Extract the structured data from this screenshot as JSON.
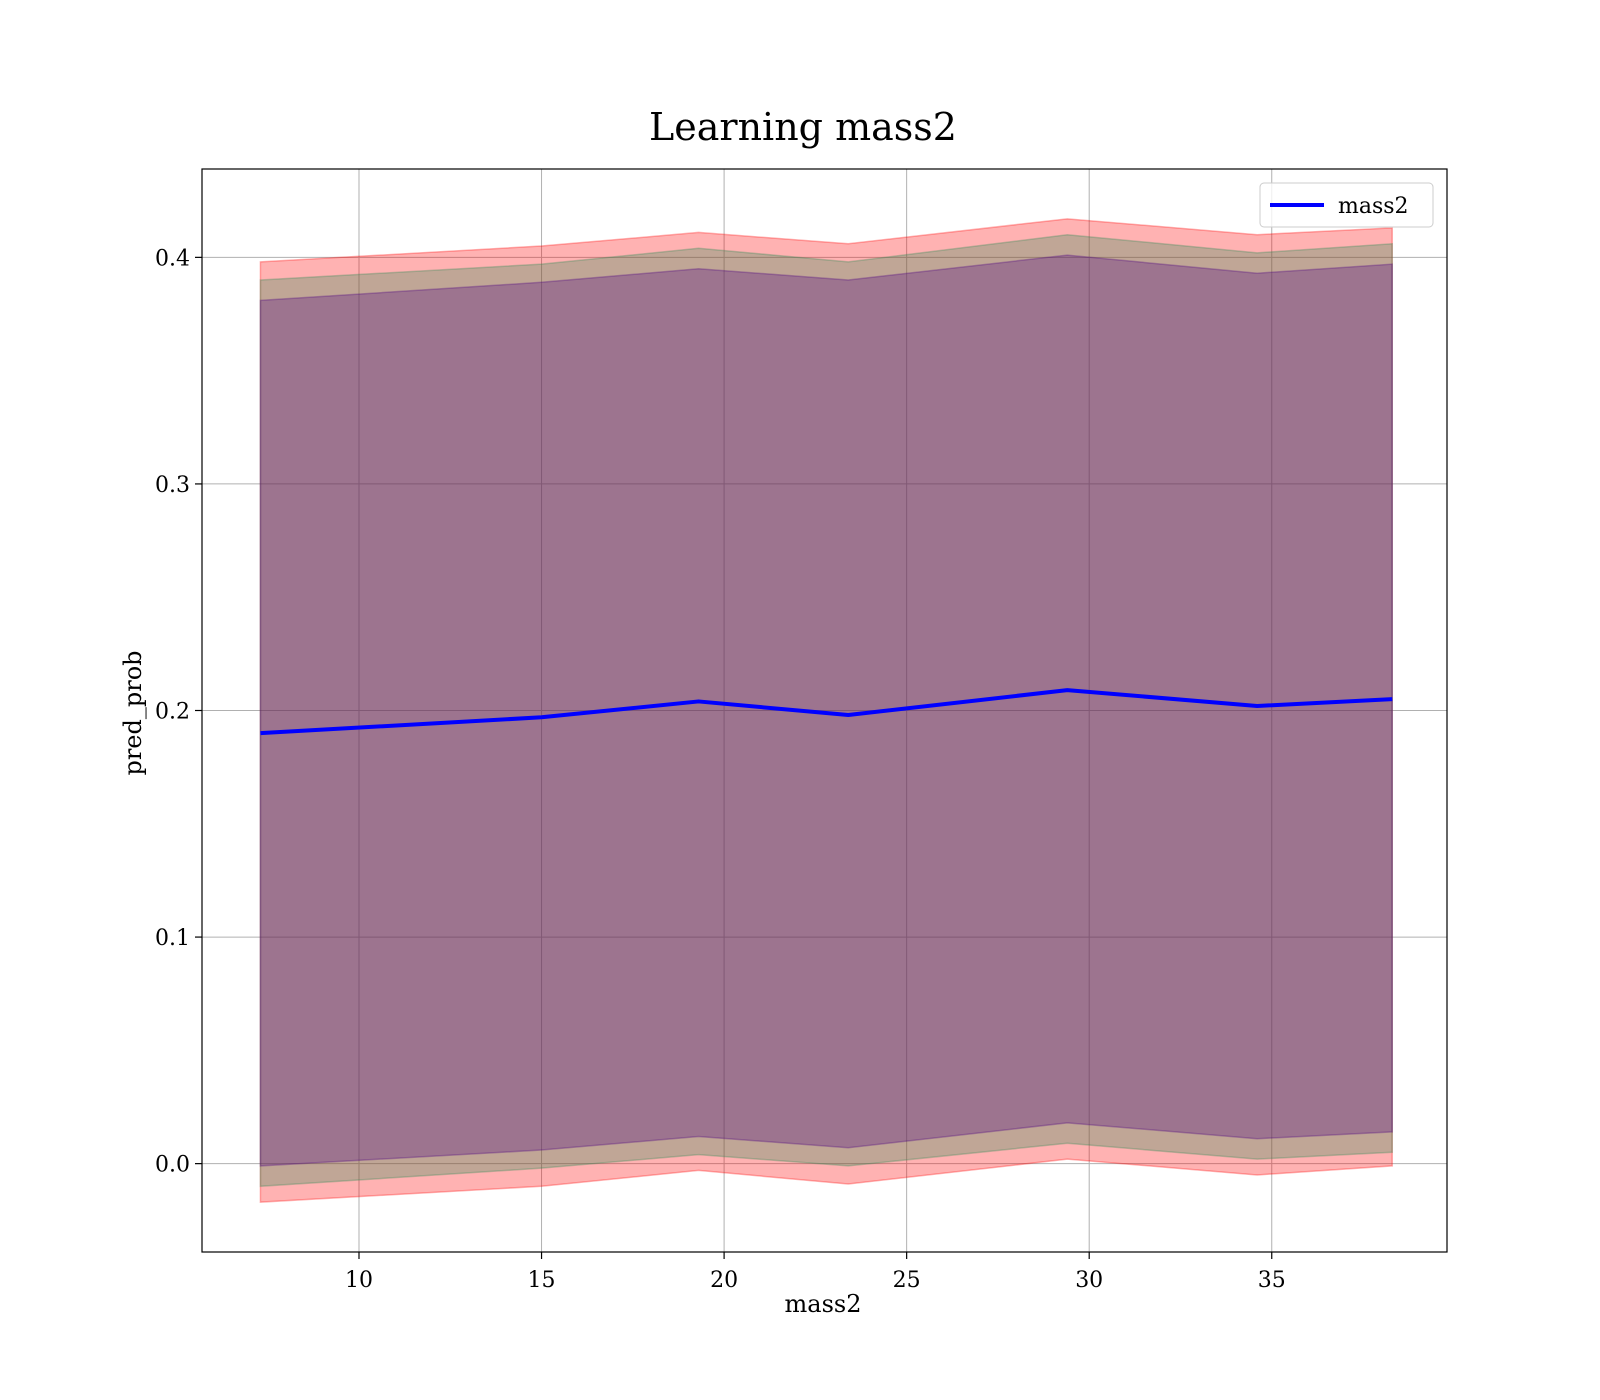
{
  "chart_data": {
    "type": "line",
    "title": "Learning mass2",
    "xlabel": "mass2",
    "ylabel": "pred_prob",
    "xlim": [
      5.7,
      39.8
    ],
    "ylim": [
      -0.039,
      0.439
    ],
    "xticks": [
      10,
      15,
      20,
      25,
      30,
      35
    ],
    "yticks": [
      0.0,
      0.1,
      0.2,
      0.3,
      0.4
    ],
    "xtick_labels": [
      "10",
      "15",
      "20",
      "25",
      "30",
      "35"
    ],
    "ytick_labels": [
      "0.0",
      "0.1",
      "0.2",
      "0.3",
      "0.4"
    ],
    "grid": true,
    "legend_position": "top-right",
    "x": [
      7.3,
      15.0,
      19.3,
      23.4,
      29.4,
      34.6,
      38.3
    ],
    "series": [
      {
        "name": "mass2",
        "color": "#0000ff",
        "values": [
          0.19,
          0.197,
          0.204,
          0.198,
          0.209,
          0.202,
          0.205
        ]
      }
    ],
    "bands": [
      {
        "color": "#ff0000",
        "opacity": 0.3,
        "upper": [
          0.398,
          0.405,
          0.411,
          0.406,
          0.417,
          0.41,
          0.413
        ],
        "lower": [
          -0.017,
          -0.01,
          -0.003,
          -0.009,
          0.002,
          -0.005,
          -0.001
        ]
      },
      {
        "color": "#2e8b57",
        "opacity": 0.3,
        "upper": [
          0.39,
          0.397,
          0.404,
          0.398,
          0.41,
          0.402,
          0.406
        ],
        "lower": [
          -0.01,
          -0.002,
          0.004,
          -0.001,
          0.009,
          0.002,
          0.005
        ]
      },
      {
        "color": "#4b0082",
        "opacity": 0.3,
        "upper": [
          0.381,
          0.389,
          0.395,
          0.39,
          0.401,
          0.393,
          0.397
        ],
        "lower": [
          -0.001,
          0.006,
          0.012,
          0.007,
          0.018,
          0.011,
          0.014
        ]
      }
    ]
  }
}
